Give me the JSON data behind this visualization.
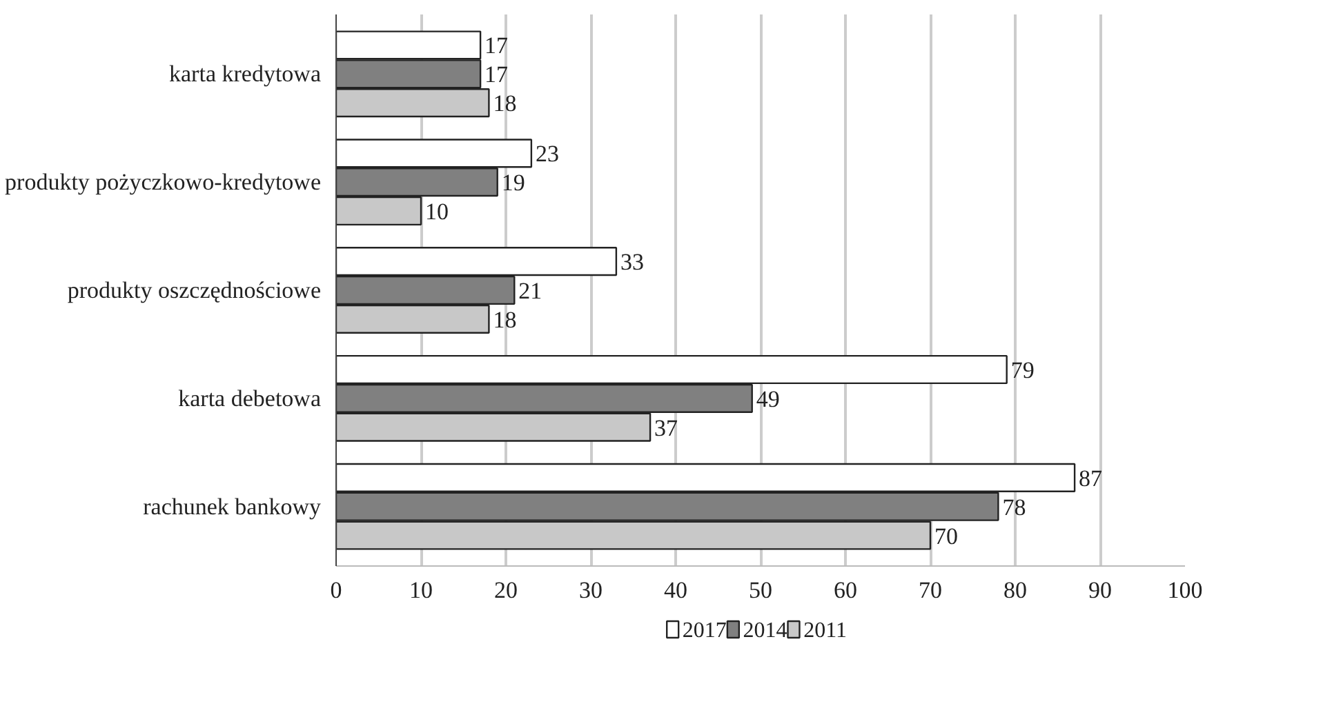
{
  "chart_data": {
    "type": "bar",
    "orientation": "horizontal",
    "categories": [
      "karta kredytowa",
      "produkty pożyczkowo-kredytowe",
      "produkty oszczędnościowe",
      "karta debetowa",
      "rachunek bankowy"
    ],
    "series": [
      {
        "name": "2017",
        "color": "#ffffff",
        "values": [
          17,
          23,
          33,
          79,
          87
        ]
      },
      {
        "name": "2014",
        "color": "#808080",
        "values": [
          17,
          19,
          21,
          49,
          78
        ]
      },
      {
        "name": "2011",
        "color": "#c8c8c8",
        "values": [
          18,
          10,
          18,
          37,
          70
        ]
      }
    ],
    "xlim": [
      0,
      100
    ],
    "xticks": [
      0,
      10,
      20,
      30,
      40,
      50,
      60,
      70,
      80,
      90,
      100
    ],
    "grid": "x",
    "legend": "bottom",
    "data_labels": true
  }
}
